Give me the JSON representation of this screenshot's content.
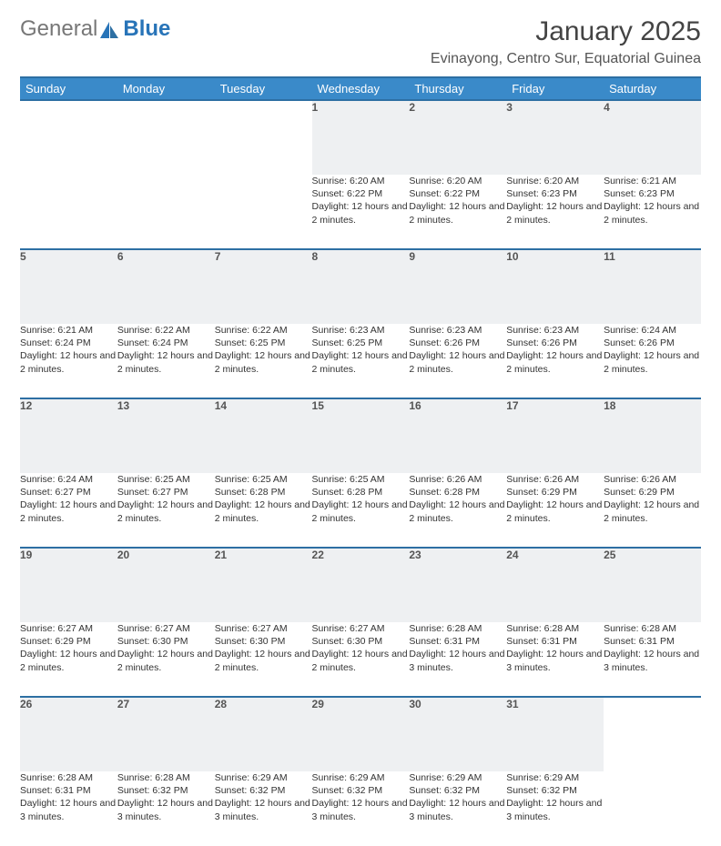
{
  "brand": {
    "textA": "General",
    "textB": "Blue"
  },
  "colors": {
    "header_bg": "#3a8ac9",
    "header_border": "#2d6fa3",
    "daynum_bg": "#eef0f2",
    "text": "#333333",
    "brand_blue": "#2874b8"
  },
  "title": "January 2025",
  "location": "Evinayong, Centro Sur, Equatorial Guinea",
  "weekdays": [
    "Sunday",
    "Monday",
    "Tuesday",
    "Wednesday",
    "Thursday",
    "Friday",
    "Saturday"
  ],
  "month": {
    "year": 2025,
    "name": "January",
    "days_in_month": 31,
    "start_weekday_index": 3
  },
  "days": {
    "1": {
      "sunrise": "6:20 AM",
      "sunset": "6:22 PM",
      "daylight": "12 hours and 2 minutes."
    },
    "2": {
      "sunrise": "6:20 AM",
      "sunset": "6:22 PM",
      "daylight": "12 hours and 2 minutes."
    },
    "3": {
      "sunrise": "6:20 AM",
      "sunset": "6:23 PM",
      "daylight": "12 hours and 2 minutes."
    },
    "4": {
      "sunrise": "6:21 AM",
      "sunset": "6:23 PM",
      "daylight": "12 hours and 2 minutes."
    },
    "5": {
      "sunrise": "6:21 AM",
      "sunset": "6:24 PM",
      "daylight": "12 hours and 2 minutes."
    },
    "6": {
      "sunrise": "6:22 AM",
      "sunset": "6:24 PM",
      "daylight": "12 hours and 2 minutes."
    },
    "7": {
      "sunrise": "6:22 AM",
      "sunset": "6:25 PM",
      "daylight": "12 hours and 2 minutes."
    },
    "8": {
      "sunrise": "6:23 AM",
      "sunset": "6:25 PM",
      "daylight": "12 hours and 2 minutes."
    },
    "9": {
      "sunrise": "6:23 AM",
      "sunset": "6:26 PM",
      "daylight": "12 hours and 2 minutes."
    },
    "10": {
      "sunrise": "6:23 AM",
      "sunset": "6:26 PM",
      "daylight": "12 hours and 2 minutes."
    },
    "11": {
      "sunrise": "6:24 AM",
      "sunset": "6:26 PM",
      "daylight": "12 hours and 2 minutes."
    },
    "12": {
      "sunrise": "6:24 AM",
      "sunset": "6:27 PM",
      "daylight": "12 hours and 2 minutes."
    },
    "13": {
      "sunrise": "6:25 AM",
      "sunset": "6:27 PM",
      "daylight": "12 hours and 2 minutes."
    },
    "14": {
      "sunrise": "6:25 AM",
      "sunset": "6:28 PM",
      "daylight": "12 hours and 2 minutes."
    },
    "15": {
      "sunrise": "6:25 AM",
      "sunset": "6:28 PM",
      "daylight": "12 hours and 2 minutes."
    },
    "16": {
      "sunrise": "6:26 AM",
      "sunset": "6:28 PM",
      "daylight": "12 hours and 2 minutes."
    },
    "17": {
      "sunrise": "6:26 AM",
      "sunset": "6:29 PM",
      "daylight": "12 hours and 2 minutes."
    },
    "18": {
      "sunrise": "6:26 AM",
      "sunset": "6:29 PM",
      "daylight": "12 hours and 2 minutes."
    },
    "19": {
      "sunrise": "6:27 AM",
      "sunset": "6:29 PM",
      "daylight": "12 hours and 2 minutes."
    },
    "20": {
      "sunrise": "6:27 AM",
      "sunset": "6:30 PM",
      "daylight": "12 hours and 2 minutes."
    },
    "21": {
      "sunrise": "6:27 AM",
      "sunset": "6:30 PM",
      "daylight": "12 hours and 2 minutes."
    },
    "22": {
      "sunrise": "6:27 AM",
      "sunset": "6:30 PM",
      "daylight": "12 hours and 2 minutes."
    },
    "23": {
      "sunrise": "6:28 AM",
      "sunset": "6:31 PM",
      "daylight": "12 hours and 3 minutes."
    },
    "24": {
      "sunrise": "6:28 AM",
      "sunset": "6:31 PM",
      "daylight": "12 hours and 3 minutes."
    },
    "25": {
      "sunrise": "6:28 AM",
      "sunset": "6:31 PM",
      "daylight": "12 hours and 3 minutes."
    },
    "26": {
      "sunrise": "6:28 AM",
      "sunset": "6:31 PM",
      "daylight": "12 hours and 3 minutes."
    },
    "27": {
      "sunrise": "6:28 AM",
      "sunset": "6:32 PM",
      "daylight": "12 hours and 3 minutes."
    },
    "28": {
      "sunrise": "6:29 AM",
      "sunset": "6:32 PM",
      "daylight": "12 hours and 3 minutes."
    },
    "29": {
      "sunrise": "6:29 AM",
      "sunset": "6:32 PM",
      "daylight": "12 hours and 3 minutes."
    },
    "30": {
      "sunrise": "6:29 AM",
      "sunset": "6:32 PM",
      "daylight": "12 hours and 3 minutes."
    },
    "31": {
      "sunrise": "6:29 AM",
      "sunset": "6:32 PM",
      "daylight": "12 hours and 3 minutes."
    }
  },
  "labels": {
    "sunrise": "Sunrise:",
    "sunset": "Sunset:",
    "daylight": "Daylight:"
  }
}
